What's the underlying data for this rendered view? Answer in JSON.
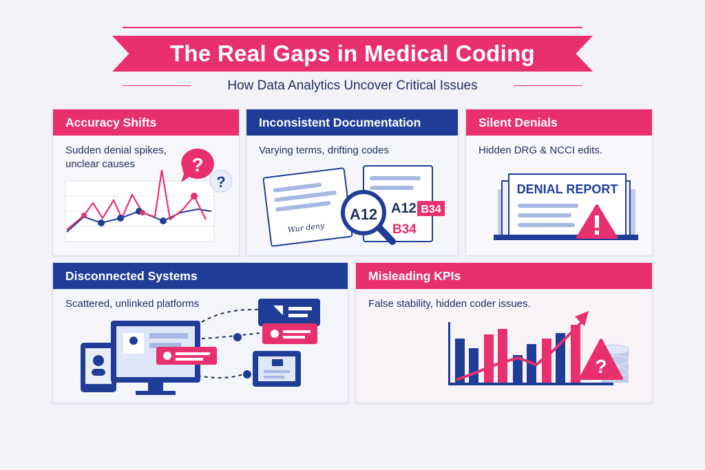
{
  "header": {
    "title": "The Real Gaps in Medical Coding",
    "subtitle": "How Data Analytics Uncover Critical Issues"
  },
  "colors": {
    "accent_pink": "#e8306e",
    "accent_navy": "#1f3d96",
    "text_dark": "#1f2d5c"
  },
  "cards": [
    {
      "title": "Accuracy Shifts",
      "description": "Sudden denial spikes, unclear causes",
      "icons": [
        "question-bubble-icon",
        "line-chart-icon"
      ]
    },
    {
      "title": "Inconsistent Documentation",
      "description": "Varying terms, drifting codes",
      "icons": [
        "document-icon",
        "magnifier-icon"
      ],
      "code_labels": [
        "A12",
        "A12",
        "B34",
        "B34"
      ],
      "signature_text": "Wur deny"
    },
    {
      "title": "Silent Denials",
      "description": "Hidden DRG & NCCI edits.",
      "icons": [
        "report-folder-icon",
        "warning-icon"
      ],
      "report_label": "DENIAL REPORT"
    },
    {
      "title": "Disconnected Systems",
      "description": "Scattered, unlinked platforms",
      "icons": [
        "tablet-icon",
        "monitor-icon",
        "message-card-icon",
        "clipboard-icon"
      ]
    },
    {
      "title": "Misleading KPIs",
      "description": "False stability, hidden coder issues.",
      "icons": [
        "bar-chart-icon",
        "trend-arrow-icon",
        "warning-icon",
        "database-icon"
      ]
    }
  ]
}
